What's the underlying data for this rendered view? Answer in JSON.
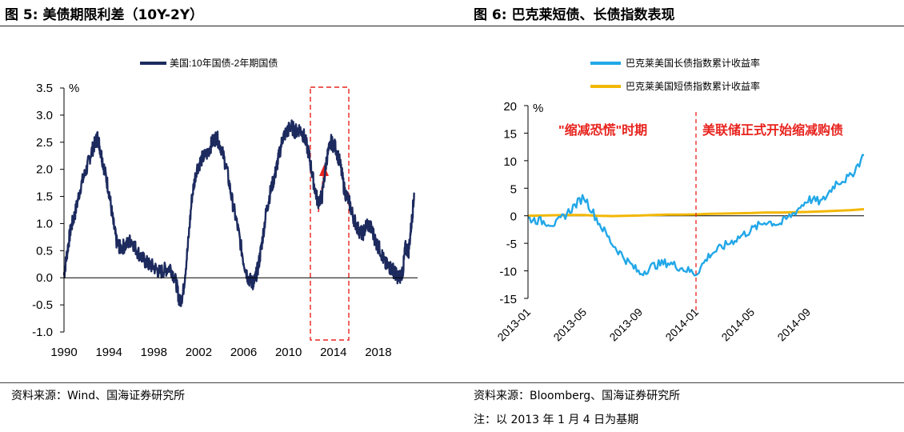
{
  "figure1": {
    "title": "图 5:  美债期限利差（10Y-2Y）",
    "source": "资料来源：Wind、国海证券研究所",
    "line_color": "#1c2a5e",
    "highlight_color": "#e8231e"
  },
  "figure2": {
    "title": "图 6:  巴克莱短债、长债指数表现",
    "source": "资料来源：Bloomberg、国海证券研究所",
    "note": "注：以 2013 年 1 月 4 日为基期",
    "colors": {
      "long": "#22a7e8",
      "short": "#f2b705",
      "annotation": "#e8231e"
    }
  },
  "chart_data": [
    {
      "type": "line",
      "title": "",
      "legend_position": "top",
      "ylabel": "%",
      "ylim": [
        -1.0,
        3.5
      ],
      "yticks": [
        "3.5",
        "3.0",
        "2.5",
        "2.0",
        "1.5",
        "1.0",
        "0.5",
        "0.0",
        "-0.5",
        "-1.0"
      ],
      "xlim": [
        1990,
        2021.5
      ],
      "xticks": [
        "1990",
        "1994",
        "1998",
        "2002",
        "2006",
        "2010",
        "2014",
        "2018"
      ],
      "series": [
        {
          "name": "美国:10年国债-2年期国债",
          "x": [
            1990.0,
            1990.3,
            1990.6,
            1991.0,
            1991.5,
            1992.0,
            1992.4,
            1992.8,
            1993.0,
            1993.3,
            1993.6,
            1994.0,
            1994.4,
            1994.7,
            1995.0,
            1995.5,
            1996.0,
            1996.5,
            1997.0,
            1997.5,
            1998.0,
            1998.5,
            1999.0,
            1999.5,
            2000.0,
            2000.3,
            2000.6,
            2001.0,
            2001.4,
            2001.8,
            2002.3,
            2002.8,
            2003.2,
            2003.6,
            2004.0,
            2004.5,
            2005.0,
            2005.5,
            2006.0,
            2006.4,
            2006.8,
            2007.0,
            2007.3,
            2007.6,
            2008.0,
            2008.4,
            2008.8,
            2009.1,
            2009.5,
            2009.9,
            2010.2,
            2010.6,
            2011.0,
            2011.4,
            2011.8,
            2012.2,
            2012.6,
            2013.0,
            2013.4,
            2013.8,
            2014.2,
            2014.6,
            2015.0,
            2015.4,
            2015.8,
            2016.2,
            2016.6,
            2017.0,
            2017.4,
            2017.8,
            2018.2,
            2018.6,
            2019.0,
            2019.3,
            2019.6,
            2019.9,
            2020.2,
            2020.4,
            2020.7,
            2021.0,
            2021.2
          ],
          "values": [
            0.05,
            0.5,
            0.9,
            1.2,
            1.7,
            2.0,
            2.3,
            2.5,
            2.6,
            2.3,
            2.0,
            1.6,
            1.0,
            0.65,
            0.55,
            0.6,
            0.7,
            0.5,
            0.35,
            0.25,
            0.2,
            0.1,
            0.15,
            0.2,
            -0.1,
            -0.45,
            -0.3,
            0.5,
            1.5,
            2.0,
            2.2,
            2.3,
            2.5,
            2.6,
            2.4,
            2.0,
            1.4,
            0.9,
            0.3,
            0.0,
            -0.1,
            -0.05,
            0.2,
            0.6,
            1.2,
            1.6,
            1.9,
            2.2,
            2.6,
            2.7,
            2.8,
            2.7,
            2.75,
            2.6,
            2.3,
            1.8,
            1.4,
            1.5,
            2.2,
            2.5,
            2.4,
            2.1,
            1.6,
            1.4,
            1.1,
            0.9,
            0.8,
            1.0,
            0.9,
            0.65,
            0.5,
            0.25,
            0.2,
            0.15,
            0.05,
            0.0,
            0.15,
            0.55,
            0.5,
            1.1,
            1.55
          ]
        }
      ]
    },
    {
      "type": "line",
      "title": "",
      "legend_position": "top",
      "ylabel": "%",
      "ylim": [
        -15,
        20
      ],
      "yticks": [
        "20",
        "15",
        "10",
        "5",
        "0",
        "-5",
        "-10",
        "-15"
      ],
      "xticks": [
        "2013-01",
        "2013-05",
        "2013-09",
        "2014-01",
        "2014-05",
        "2014-09"
      ],
      "x": [
        "2013-01",
        "2013-02",
        "2013-03",
        "2013-04",
        "2013-05",
        "2013-06",
        "2013-07",
        "2013-08",
        "2013-09",
        "2013-10",
        "2013-11",
        "2013-12",
        "2014-01",
        "2014-02",
        "2014-03",
        "2014-04",
        "2014-05",
        "2014-06",
        "2014-07",
        "2014-08",
        "2014-09",
        "2014-10",
        "2014-11",
        "2014-12",
        "2015-01"
      ],
      "annotations": [
        "\"缩减恐慌\"时期",
        "美联储正式开始缩减购债"
      ],
      "series": [
        {
          "name": "巴克莱美国长债指数累计收益率",
          "values": [
            -0.5,
            -1.0,
            -1.5,
            1.0,
            3.5,
            -1.0,
            -5.0,
            -8.0,
            -10.5,
            -9.0,
            -8.5,
            -9.5,
            -10.5,
            -7.0,
            -5.5,
            -4.0,
            -2.5,
            -1.0,
            -1.5,
            0.5,
            3.0,
            2.5,
            6.0,
            7.0,
            11.0
          ]
        },
        {
          "name": "巴克莱美国短债指数累计收益率",
          "values": [
            0.0,
            0.05,
            0.1,
            0.15,
            0.15,
            0.0,
            -0.05,
            0.0,
            0.05,
            0.15,
            0.2,
            0.2,
            0.25,
            0.35,
            0.4,
            0.45,
            0.5,
            0.6,
            0.6,
            0.65,
            0.7,
            0.8,
            0.9,
            1.0,
            1.2
          ]
        }
      ]
    }
  ]
}
